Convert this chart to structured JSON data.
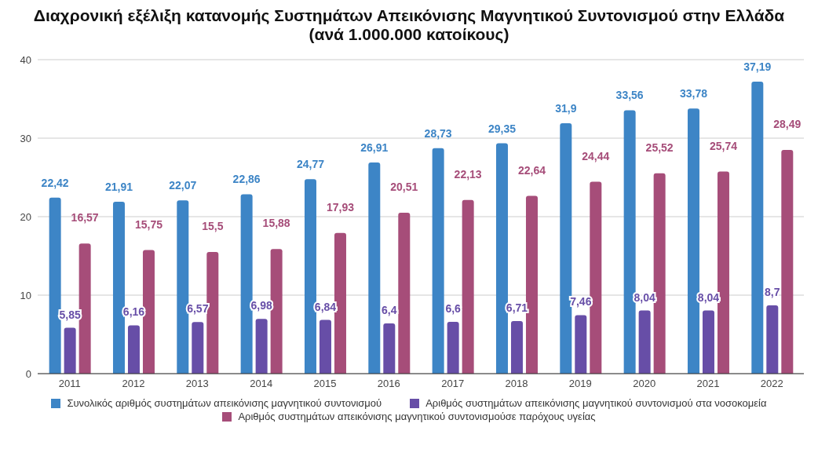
{
  "chart_data": {
    "type": "bar",
    "title": "Διαχρονική εξέλιξη κατανομής Συστημάτων Απεικόνισης Μαγνητικού Συντονισμού στην Ελλάδα (ανά 1.000.000 κατοίκους)",
    "categories": [
      "2011",
      "2012",
      "2013",
      "2014",
      "2015",
      "2016",
      "2017",
      "2018",
      "2019",
      "2020",
      "2021",
      "2022"
    ],
    "series": [
      {
        "name": "Συνολικός αριθμός συστημάτων απεικόνισης μαγνητικού συντονισμού",
        "color": "#3d85c6",
        "values": [
          22.42,
          21.91,
          22.07,
          22.86,
          24.77,
          26.91,
          28.73,
          29.35,
          31.9,
          33.56,
          33.78,
          37.19
        ],
        "value_labels": [
          "22,42",
          "21,91",
          "22,07",
          "22,86",
          "24,77",
          "26,91",
          "28,73",
          "29,35",
          "31,9",
          "33,56",
          "33,78",
          "37,19"
        ]
      },
      {
        "name": "Αριθμός συστημάτων απεικόνισης μαγνητικού συντονισμού στα νοσοκομεία",
        "color": "#674ea7",
        "values": [
          5.85,
          6.16,
          6.57,
          6.98,
          6.84,
          6.4,
          6.6,
          6.71,
          7.46,
          8.04,
          8.04,
          8.7
        ],
        "value_labels": [
          "5,85",
          "6,16",
          "6,57",
          "6,98",
          "6,84",
          "6,4",
          "6,6",
          "6,71",
          "7,46",
          "8,04",
          "8,04",
          "8,7"
        ]
      },
      {
        "name": "Αριθμός συστημάτων απεικόνισης μαγνητικού συντονισμούσε παρόχους υγείας",
        "color": "#a64d79",
        "values": [
          16.57,
          15.75,
          15.5,
          15.88,
          17.93,
          20.51,
          22.13,
          22.64,
          24.44,
          25.52,
          25.74,
          28.49
        ],
        "value_labels": [
          "16,57",
          "15,75",
          "15,5",
          "15,88",
          "17,93",
          "20,51",
          "22,13",
          "22,64",
          "24,44",
          "25,52",
          "25,74",
          "28,49"
        ]
      }
    ],
    "ylim": [
      0,
      40
    ],
    "yticks": [
      0,
      10,
      20,
      30,
      40
    ],
    "grid": "y",
    "legend": "bottom"
  }
}
